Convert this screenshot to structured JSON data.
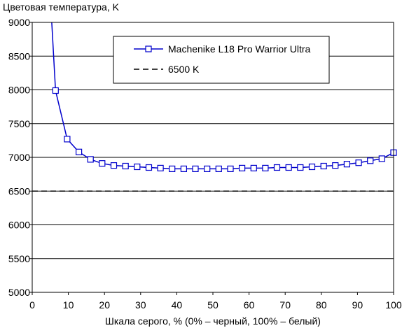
{
  "chart_data": {
    "type": "line",
    "title": "",
    "ylabel": "Цветовая температура, K",
    "xlabel": "Шкала серого, % (0% – черный, 100% – белый)",
    "xlim": [
      0,
      100
    ],
    "ylim": [
      5000,
      9000
    ],
    "xticks": [
      0,
      10,
      20,
      30,
      40,
      50,
      60,
      70,
      80,
      90,
      100
    ],
    "yticks": [
      5000,
      5500,
      6000,
      6500,
      7000,
      7500,
      8000,
      8500,
      9000
    ],
    "grid": "horizontal",
    "legend_placement": "top-right",
    "series": [
      {
        "name": "Machenike L18 Pro Warrior Ultra",
        "color": "#0000cc",
        "marker": "open-square",
        "line_start": [
          5.4,
          9000
        ],
        "x": [
          6.45,
          9.68,
          12.9,
          16.13,
          19.35,
          22.58,
          25.81,
          29.03,
          32.26,
          35.48,
          38.71,
          41.94,
          45.16,
          48.39,
          51.61,
          54.84,
          58.06,
          61.29,
          64.52,
          67.74,
          70.97,
          74.19,
          77.42,
          80.65,
          83.87,
          87.1,
          90.32,
          93.55,
          96.77,
          100
        ],
        "y": [
          7990,
          7270,
          7080,
          6970,
          6910,
          6880,
          6870,
          6860,
          6850,
          6840,
          6830,
          6830,
          6830,
          6830,
          6830,
          6830,
          6840,
          6840,
          6840,
          6850,
          6850,
          6850,
          6860,
          6870,
          6880,
          6900,
          6920,
          6950,
          6980,
          7070
        ]
      },
      {
        "name": "6500 K",
        "color": "#000000",
        "style": "dashed",
        "x": [
          0,
          100
        ],
        "y": [
          6500,
          6500
        ]
      }
    ]
  }
}
